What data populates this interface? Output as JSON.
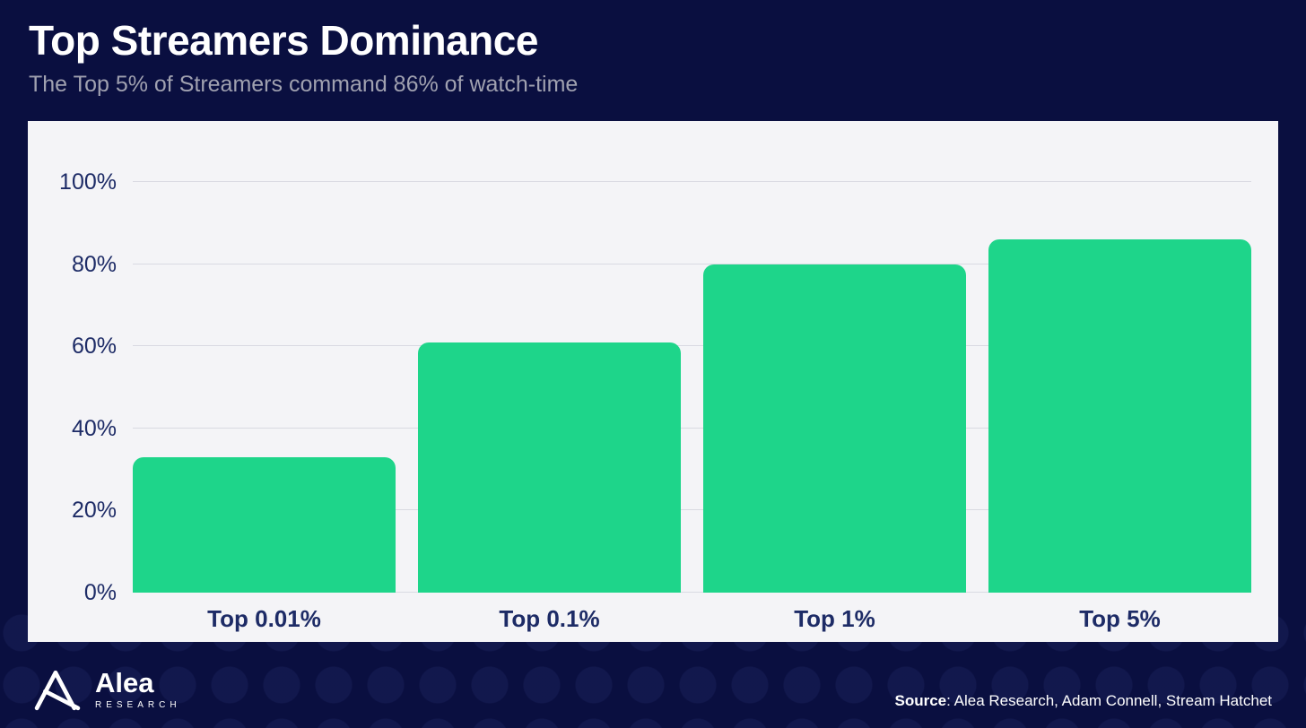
{
  "header": {
    "title": "Top Streamers Dominance",
    "subtitle": "The Top 5% of Streamers command 86% of watch-time"
  },
  "chart_data": {
    "type": "bar",
    "title": "",
    "categories": [
      "Top 0.01%",
      "Top 0.1%",
      "Top 1%",
      "Top 5%"
    ],
    "values": [
      33,
      61,
      80,
      86
    ],
    "unit": "%",
    "xlabel": "",
    "ylabel": "",
    "ylim": [
      0,
      100
    ],
    "yticks": [
      {
        "value": 0,
        "label": "0%"
      },
      {
        "value": 20,
        "label": "20%"
      },
      {
        "value": 40,
        "label": "40%"
      },
      {
        "value": 60,
        "label": "60%"
      },
      {
        "value": 80,
        "label": "80%"
      },
      {
        "value": 100,
        "label": "100%"
      }
    ],
    "grid": true,
    "legend_position": "none",
    "bar_color": "#1ed58a",
    "panel_bg": "#f4f4f7",
    "axis_label_color": "#1d2b66",
    "gridline_color": "#d9dae2"
  },
  "footer": {
    "brand": "Alea",
    "brand_sub": "RESEARCH",
    "source_label": "Source",
    "source_rest": ": Alea Research, Adam Connell, Stream Hatchet"
  },
  "colors": {
    "background": "#0a0f40",
    "title": "#ffffff",
    "subtitle": "#a0a1b0"
  }
}
